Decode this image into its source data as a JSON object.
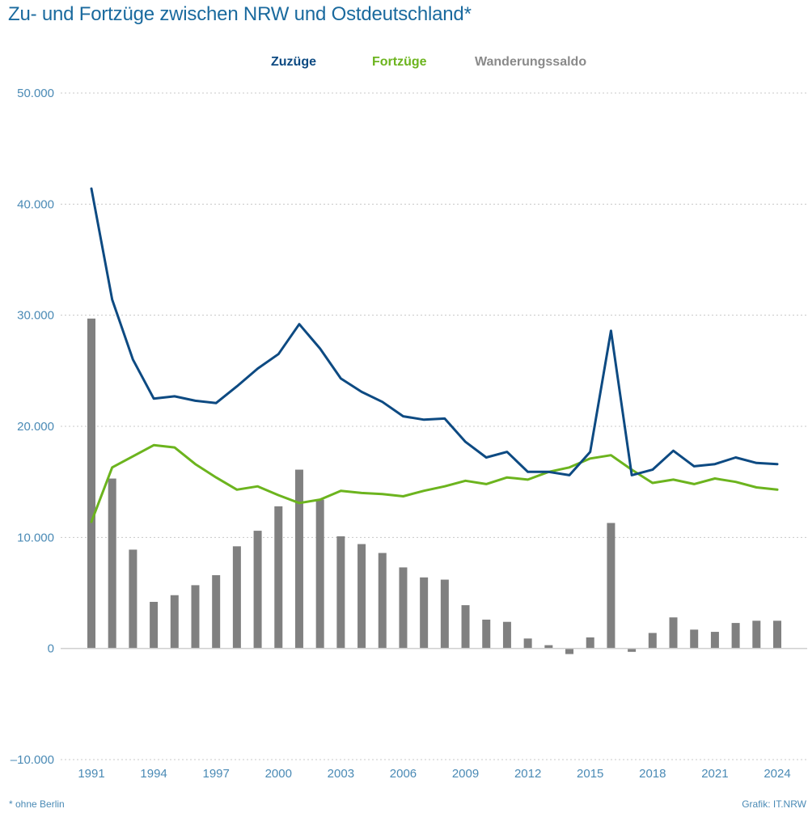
{
  "chart_data": {
    "type": "bar+line",
    "title": "Zu- und Fortzüge zwischen NRW und Ostdeutschland*",
    "xlabel": "",
    "ylabel": "",
    "ylim": [
      -10000,
      50000
    ],
    "yticks": [
      -10000,
      0,
      10000,
      20000,
      30000,
      40000,
      50000
    ],
    "ytick_labels": [
      "–10.000",
      "0",
      "10.000",
      "20.000",
      "30.000",
      "40.000",
      "50.000"
    ],
    "xticks": [
      1991,
      1994,
      1997,
      2000,
      2003,
      2006,
      2009,
      2012,
      2015,
      2018,
      2021,
      2024
    ],
    "xtick_labels": [
      "1991",
      "1994",
      "1997",
      "2000",
      "2003",
      "2006",
      "2009",
      "2012",
      "2015",
      "2018",
      "2021",
      "2024"
    ],
    "grid": true,
    "legend_position": "top-center",
    "x": [
      1991,
      1992,
      1993,
      1994,
      1995,
      1996,
      1997,
      1998,
      1999,
      2000,
      2001,
      2002,
      2003,
      2004,
      2005,
      2006,
      2007,
      2008,
      2009,
      2010,
      2011,
      2012,
      2013,
      2014,
      2015,
      2016,
      2017,
      2018,
      2019,
      2020,
      2021,
      2022,
      2023,
      2024
    ],
    "series": [
      {
        "name": "Zuzüge",
        "kind": "line",
        "color": "#0d4a82",
        "values": [
          41400,
          31400,
          26000,
          22500,
          22700,
          22300,
          22100,
          23600,
          25200,
          26500,
          29200,
          27000,
          24300,
          23100,
          22200,
          20900,
          20600,
          20700,
          18600,
          17200,
          17700,
          15900,
          15900,
          15600,
          17700,
          28600,
          15600,
          16100,
          17800,
          16400,
          16600,
          17200,
          16700,
          16600
        ]
      },
      {
        "name": "Fortzüge",
        "kind": "line",
        "color": "#6cb41e",
        "values": [
          11400,
          16300,
          17300,
          18300,
          18100,
          16600,
          15400,
          14300,
          14600,
          13800,
          13100,
          13400,
          14200,
          14000,
          13900,
          13700,
          14200,
          14600,
          15100,
          14800,
          15400,
          15200,
          15900,
          16300,
          17100,
          17400,
          16100,
          14900,
          15200,
          14800,
          15300,
          15000,
          14500,
          14300
        ]
      },
      {
        "name": "Wanderungssaldo",
        "kind": "bar",
        "color": "#808080",
        "values": [
          29700,
          15300,
          8900,
          4200,
          4800,
          5700,
          6600,
          9200,
          10600,
          12800,
          16100,
          13400,
          10100,
          9400,
          8600,
          7300,
          6400,
          6200,
          3900,
          2600,
          2400,
          900,
          300,
          -500,
          1000,
          11300,
          -300,
          1400,
          2800,
          1700,
          1500,
          2300,
          2500,
          2500
        ]
      }
    ],
    "footnote": "*  ohne Berlin",
    "credit": "Grafik: IT.NRW"
  },
  "colors": {
    "title": "#1a6a9e",
    "axis_text": "#4a8ab5",
    "grid": "#c8c8c8",
    "baseline": "#cfcfcf"
  }
}
